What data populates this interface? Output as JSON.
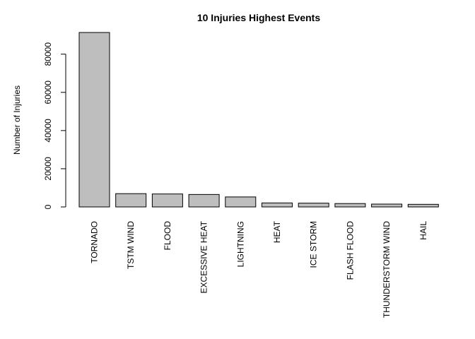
{
  "chart_data": {
    "type": "bar",
    "title": "10 Injuries Highest Events",
    "xlabel": "",
    "ylabel": "Number of Injuries",
    "categories": [
      "TORNADO",
      "TSTM WIND",
      "FLOOD",
      "EXCESSIVE HEAT",
      "LIGHTNING",
      "HEAT",
      "ICE STORM",
      "FLASH FLOOD",
      "THUNDERSTORM WIND",
      "HAIL"
    ],
    "values": [
      91346,
      6957,
      6789,
      6525,
      5230,
      2100,
      1975,
      1777,
      1488,
      1361
    ],
    "ylim": [
      0,
      91346
    ],
    "yticks": [
      0,
      20000,
      40000,
      60000,
      80000
    ],
    "bar_color": "#bebebe",
    "grid": false,
    "legend": "none"
  }
}
